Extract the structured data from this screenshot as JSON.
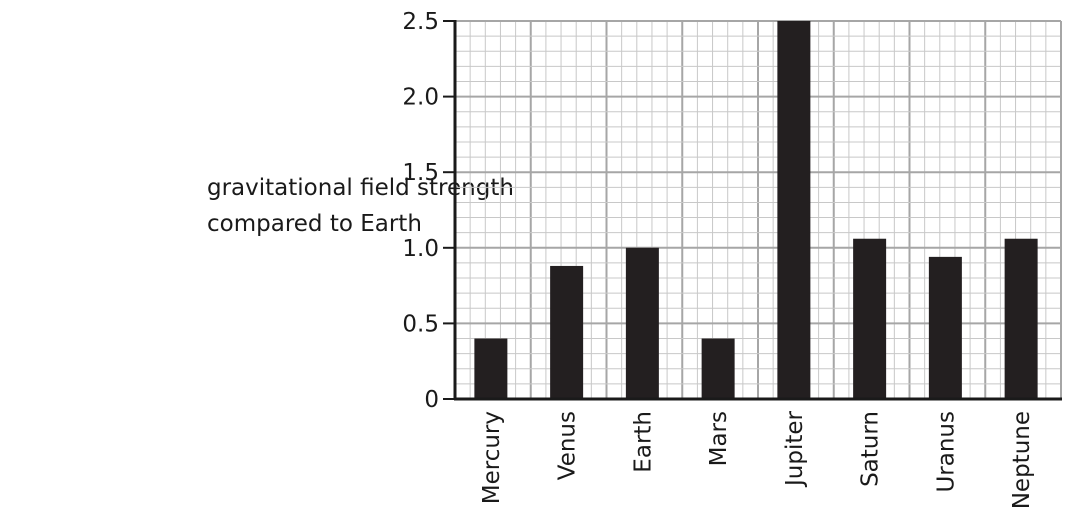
{
  "chart_data": {
    "type": "bar",
    "ylabel": [
      "gravitational field strength",
      "compared to Earth"
    ],
    "xlabel": "",
    "categories": [
      "Mercury",
      "Venus",
      "Earth",
      "Mars",
      "Jupiter",
      "Saturn",
      "Uranus",
      "Neptune"
    ],
    "values": [
      0.4,
      0.88,
      1.0,
      0.4,
      2.5,
      1.06,
      0.94,
      1.06
    ],
    "ylim": [
      0,
      2.5
    ],
    "yticks": [
      "0",
      "0.5",
      "1.0",
      "1.5",
      "2.0",
      "2.5"
    ],
    "ytick_values": [
      0,
      0.5,
      1.0,
      1.5,
      2.0,
      2.5
    ],
    "grid": true,
    "bar_color": "#231f20",
    "grid_major_color": "#a6a6a6",
    "grid_minor_color": "#c8c8c8"
  }
}
